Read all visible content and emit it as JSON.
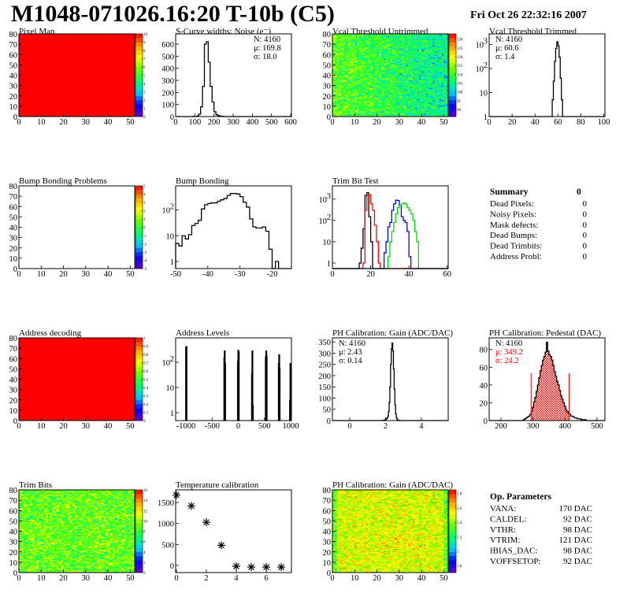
{
  "header": {
    "title": "M1048-071026.16:20 T-10b (C5)",
    "date": "Fri Oct 26 22:32:16 2007"
  },
  "palette_colors": [
    "#6600cc",
    "#0000ff",
    "#00ccff",
    "#00ff66",
    "#66ff00",
    "#ffff00",
    "#ff9900",
    "#ff0000"
  ],
  "chart_data": [
    {
      "type": "heatmap",
      "title": "Pixel Map",
      "nx": 52,
      "ny": 80,
      "xlim": [
        0,
        52
      ],
      "ylim": [
        0,
        80
      ],
      "xticks": [
        0,
        10,
        20,
        30,
        40,
        50
      ],
      "yticks": [
        0,
        10,
        20,
        30,
        40,
        50,
        60,
        70,
        80
      ],
      "zlim": [
        0,
        10
      ],
      "zticks": [
        "0",
        "1",
        "2",
        "3",
        "4",
        "5",
        "6",
        "7",
        "8",
        "9",
        "10"
      ],
      "value": 10
    },
    {
      "type": "hist",
      "title": "S-Curve widths: Noise (e⁻)",
      "xlim": [
        0,
        604
      ],
      "ylim": [
        0,
        685
      ],
      "xticks": [
        0,
        100,
        200,
        300,
        400,
        500,
        600
      ],
      "yticks": [
        {
          "v": 0,
          "label": "0"
        },
        {
          "v": 100,
          "label": "100"
        },
        {
          "v": 200,
          "label": "200"
        },
        {
          "v": 300,
          "label": "300"
        },
        {
          "v": 400,
          "label": "400"
        },
        {
          "v": 500,
          "label": "500"
        },
        {
          "v": 600,
          "label": "600"
        }
      ],
      "series": [
        {
          "color": "#000000",
          "start": 90,
          "width": 10,
          "values": [
            2,
            0,
            5,
            20,
            80,
            250,
            600,
            620,
            450,
            250,
            120,
            40,
            15,
            8,
            3,
            2,
            0
          ]
        }
      ],
      "stats": {
        "position": "top-right",
        "lines": [
          {
            "text": "N: 4160",
            "color": "#000000"
          },
          {
            "text": "μ: 169.8",
            "color": "#000000"
          },
          {
            "text": "σ: 18.0",
            "color": "#000000"
          }
        ]
      }
    },
    {
      "type": "heatmap",
      "title": "Vcal Threshold Untrimmed",
      "nx": 52,
      "ny": 80,
      "xlim": [
        0,
        52
      ],
      "ylim": [
        0,
        80
      ],
      "xticks": [
        0,
        10,
        20,
        30,
        40,
        50
      ],
      "yticks": [
        0,
        10,
        20,
        30,
        40,
        50,
        60,
        70,
        80
      ],
      "zlim": [
        86,
        133
      ],
      "zticks": [
        "90",
        "95",
        "100",
        "105",
        "110",
        "115",
        "120",
        "125",
        "130"
      ],
      "mean": 108
    },
    {
      "type": "hist",
      "title": "Vcal Threshold Trimmed",
      "log": true,
      "xlim": [
        0,
        101
      ],
      "ylim": [
        1,
        2800
      ],
      "xticks": [
        0,
        20,
        40,
        60,
        80,
        100
      ],
      "yticks": [
        {
          "v": 1,
          "label": "1"
        },
        {
          "v": 10,
          "label": "10"
        },
        {
          "v": 100,
          "label": "10",
          "exp": "2"
        },
        {
          "v": 1000,
          "label": "10",
          "exp": "3"
        }
      ],
      "series": [
        {
          "color": "#000000",
          "start": 54,
          "width": 1,
          "values": [
            1,
            5,
            30,
            200,
            700,
            1300,
            900,
            300,
            40,
            5,
            1
          ]
        }
      ],
      "stats": {
        "position": "top-left",
        "lines": [
          {
            "text": "N: 4160",
            "color": "#000000"
          },
          {
            "text": "μ: 60.6",
            "color": "#000000"
          },
          {
            "text": "σ:  1.4",
            "color": "#000000"
          }
        ]
      }
    },
    {
      "type": "heatmap",
      "title": "Bump Bonding Problems",
      "nx": 52,
      "ny": 80,
      "xlim": [
        0,
        52
      ],
      "ylim": [
        0,
        80
      ],
      "xticks": [
        0,
        10,
        20,
        30,
        40,
        50
      ],
      "yticks": [
        0,
        10,
        20,
        30,
        40,
        50,
        60,
        70,
        80
      ],
      "zlim": [
        -5,
        5
      ],
      "zticks": [
        "-5",
        "-4",
        "-3",
        "-2",
        "-1",
        "0",
        "1",
        "2",
        "3",
        "4",
        "5"
      ],
      "empty": true
    },
    {
      "type": "hist",
      "title": "Bump Bonding",
      "log": true,
      "xlim": [
        -50,
        -14
      ],
      "ylim": [
        0.53,
        870
      ],
      "xticks": [
        -50,
        -40,
        -30,
        -20
      ],
      "yticks": [
        {
          "v": 1,
          "label": "1"
        },
        {
          "v": 10,
          "label": "10"
        },
        {
          "v": 100,
          "label": "10",
          "exp": "2"
        }
      ],
      "series": [
        {
          "color": "#000000",
          "start": -50,
          "width": 1,
          "values": [
            5,
            4,
            10,
            7.5,
            11,
            25,
            30,
            40,
            110,
            160,
            180,
            190,
            190,
            220,
            250,
            280,
            370,
            440,
            440,
            420,
            330,
            200,
            130,
            45,
            22,
            20,
            20,
            22,
            15,
            3,
            0,
            1,
            0
          ]
        }
      ]
    },
    {
      "type": "hist",
      "title": "Trim Bit Test",
      "log": true,
      "xlim": [
        0,
        60.5
      ],
      "ylim": [
        0.55,
        4200
      ],
      "xticks": [
        0,
        20,
        40,
        60
      ],
      "yticks": [
        {
          "v": 1,
          "label": "1"
        },
        {
          "v": 10,
          "label": "10"
        },
        {
          "v": 100,
          "label": "10",
          "exp": "2"
        },
        {
          "v": 1000,
          "label": "10",
          "exp": "3"
        }
      ],
      "series": [
        {
          "color": "#000000",
          "start": 14,
          "width": 1,
          "values": [
            1,
            5,
            40,
            1500,
            2000,
            150,
            10
          ]
        },
        {
          "color": "#ff0000",
          "start": 16,
          "width": 1,
          "values": [
            1,
            300,
            1500,
            1600,
            600,
            300,
            60,
            10,
            1
          ]
        },
        {
          "color": "#0000ff",
          "start": 27,
          "width": 1,
          "values": [
            3,
            10,
            50,
            80,
            300,
            600,
            900,
            850,
            500,
            150,
            100,
            80,
            30,
            2
          ]
        },
        {
          "color": "#00dd00",
          "start": 29,
          "width": 1,
          "values": [
            2,
            10,
            30,
            80,
            200,
            400,
            500,
            600,
            650,
            600,
            400,
            300,
            200,
            100,
            30,
            10
          ]
        }
      ]
    },
    {
      "type": "summary",
      "title": "Summary",
      "total": "0",
      "rows": [
        {
          "label": "Dead Pixels:",
          "value": "0"
        },
        {
          "label": "Noisy Pixels:",
          "value": "0"
        },
        {
          "label": "Mask defects:",
          "value": "0"
        },
        {
          "label": "Dead Bumps:",
          "value": "0"
        },
        {
          "label": "Dead Trimbits:",
          "value": "0"
        },
        {
          "label": "Address Probl:",
          "value": "0"
        }
      ]
    },
    {
      "type": "heatmap",
      "title": "Address decoding",
      "nx": 52,
      "ny": 80,
      "xlim": [
        0,
        52
      ],
      "ylim": [
        0,
        80
      ],
      "xticks": [
        0,
        10,
        20,
        30,
        40,
        50
      ],
      "yticks": [
        0,
        10,
        20,
        30,
        40,
        50,
        60,
        70,
        80
      ],
      "zlim": [
        0,
        1
      ],
      "zticks": [
        "0",
        "0.1",
        "0.2",
        "0.3",
        "0.4",
        "0.5",
        "0.6",
        "0.7",
        "0.8",
        "0.9",
        "1"
      ],
      "value": 1
    },
    {
      "type": "spikes",
      "title": "Address Levels",
      "log": true,
      "xlim": [
        -1195,
        1015
      ],
      "ylim": [
        0.49,
        930
      ],
      "xticks": [
        -1000,
        -500,
        0,
        500,
        1000
      ],
      "yticks": [
        {
          "v": 1,
          "label": "1"
        },
        {
          "v": 10,
          "label": "10"
        },
        {
          "v": 100,
          "label": "10",
          "exp": "2"
        }
      ],
      "width": 8,
      "points": [
        [
          -1000,
          400
        ],
        [
          -992,
          420
        ],
        [
          -270,
          150
        ],
        [
          -262,
          280
        ],
        [
          -254,
          90
        ],
        [
          -10,
          110
        ],
        [
          -2,
          300
        ],
        [
          6,
          250
        ],
        [
          258,
          35
        ],
        [
          266,
          280
        ],
        [
          274,
          2
        ],
        [
          522,
          160
        ],
        [
          530,
          280
        ],
        [
          538,
          180
        ],
        [
          770,
          90
        ],
        [
          778,
          200
        ],
        [
          786,
          60
        ],
        [
          984,
          3
        ],
        [
          992,
          90
        ],
        [
          1000,
          60
        ]
      ]
    },
    {
      "type": "hist",
      "title": "PH Calibration: Gain (ADC/DAC)",
      "xlim": [
        -0.97,
        5.5
      ],
      "ylim": [
        0,
        368
      ],
      "xticks": [
        0,
        2,
        4
      ],
      "yticks": [
        {
          "v": 0,
          "label": "0"
        },
        {
          "v": 50,
          "label": "50"
        },
        {
          "v": 100,
          "label": "100"
        },
        {
          "v": 150,
          "label": "150"
        },
        {
          "v": 200,
          "label": "200"
        },
        {
          "v": 250,
          "label": "250"
        },
        {
          "v": 300,
          "label": "300"
        },
        {
          "v": 350,
          "label": "350"
        }
      ],
      "series": [
        {
          "color": "#000000",
          "start": 1.8,
          "width": 0.04,
          "values": [
            1,
            0,
            1,
            2,
            3,
            5,
            8,
            12,
            20,
            40,
            80,
            150,
            250,
            320,
            345,
            310,
            230,
            140,
            70,
            30,
            12,
            5,
            2,
            1,
            0
          ]
        }
      ],
      "stats": {
        "position": "top-left",
        "lines": [
          {
            "text": "N: 4160",
            "color": "#000000"
          },
          {
            "text": "μ: 2.43",
            "color": "#000000"
          },
          {
            "text": "σ: 0.14",
            "color": "#000000"
          }
        ]
      }
    },
    {
      "type": "hist",
      "title": "PH Calibration: Pedestal (DAC)",
      "xlim": [
        163,
        525
      ],
      "ylim": [
        0,
        93
      ],
      "xticks": [
        200,
        300,
        400,
        500
      ],
      "yticks": [
        {
          "v": 0,
          "label": "0"
        },
        {
          "v": 20,
          "label": "20"
        },
        {
          "v": 40,
          "label": "40"
        },
        {
          "v": 60,
          "label": "60"
        },
        {
          "v": 80,
          "label": "80"
        }
      ],
      "series": [
        {
          "color": "#000000",
          "start": 270,
          "width": 4,
          "values": [
            1,
            2,
            3,
            4,
            5,
            7,
            10,
            15,
            21,
            26,
            33,
            40,
            48,
            56,
            62,
            68,
            72,
            77,
            88,
            78,
            74,
            72,
            68,
            62,
            55,
            50,
            44,
            40,
            34,
            28,
            24,
            20,
            16,
            12,
            10,
            8,
            7,
            5,
            5,
            4,
            3,
            3,
            2,
            2,
            2,
            1,
            1,
            1,
            1,
            0
          ]
        }
      ],
      "fit_range": [
        294,
        413
      ],
      "fit_color": "#ff0000",
      "marker_height": 53,
      "stats": {
        "position": "top-left",
        "lines": [
          {
            "text": "N: 4160",
            "color": "#000000"
          },
          {
            "text": "μ: 349.2",
            "color": "#ff0000"
          },
          {
            "text": "σ: 24.2",
            "color": "#ff0000"
          }
        ]
      }
    },
    {
      "type": "heatmap",
      "title": "Trim Bits",
      "nx": 52,
      "ny": 80,
      "xlim": [
        0,
        52
      ],
      "ylim": [
        0,
        80
      ],
      "xticks": [
        0,
        10,
        20,
        30,
        40,
        50
      ],
      "yticks": [
        0,
        10,
        20,
        30,
        40,
        50,
        60,
        70,
        80
      ],
      "zlim": [
        0,
        16
      ],
      "zticks": [
        "0",
        "2",
        "4",
        "6",
        "8",
        "10",
        "12",
        "14",
        "16"
      ],
      "mean": 9
    },
    {
      "type": "scatter",
      "title": "Temperature calibration",
      "xlim": [
        -0.05,
        7.68
      ],
      "ylim": [
        -171,
        1803
      ],
      "xticks": [
        0,
        2,
        4,
        6
      ],
      "yticks": [
        {
          "v": 0,
          "label": "0"
        },
        {
          "v": 500,
          "label": "500"
        },
        {
          "v": 1000,
          "label": "1000"
        },
        {
          "v": 1500,
          "label": "1500"
        }
      ],
      "x": [
        0,
        1,
        2,
        3,
        4,
        5,
        6,
        7
      ],
      "y": [
        1680,
        1420,
        1030,
        480,
        -20,
        -40,
        -40,
        -40
      ]
    },
    {
      "type": "heatmap",
      "title": "PH Calibration: Gain (ADC/DAC)",
      "nx": 52,
      "ny": 80,
      "xlim": [
        0,
        52
      ],
      "ylim": [
        0,
        80
      ],
      "xticks": [
        0,
        10,
        20,
        30,
        40,
        50
      ],
      "yticks": [
        0,
        10,
        20,
        30,
        40,
        50,
        60,
        70,
        80
      ],
      "zlim": [
        1.7,
        2.85
      ],
      "zticks": [
        "1.8",
        "2",
        "2.2",
        "2.4",
        "2.6",
        "2.8"
      ],
      "mean": 2.48
    },
    {
      "type": "params",
      "title": "Op. Parameters",
      "rows": [
        {
          "label": "VANA:",
          "value": "170 DAC"
        },
        {
          "label": "CALDEL:",
          "value": "92 DAC"
        },
        {
          "label": "VTHR:",
          "value": "98 DAC"
        },
        {
          "label": "VTRIM:",
          "value": "121 DAC"
        },
        {
          "label": "IBIAS_DAC:",
          "value": "98 DAC"
        },
        {
          "label": "VOFFSETOP:",
          "value": "92 DAC"
        }
      ]
    }
  ]
}
